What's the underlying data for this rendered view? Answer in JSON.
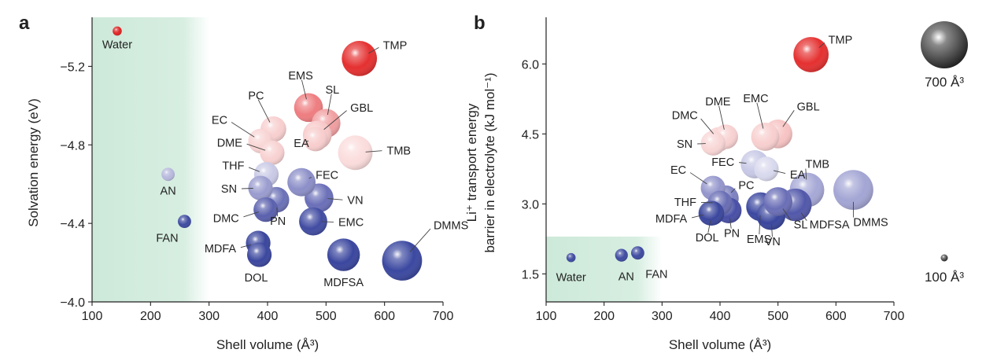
{
  "colors": {
    "shade": "#bfe3cf",
    "dark_blue": "#3a4a9e",
    "red": "#e8302c",
    "gray_ref": "#444444"
  },
  "chart_data": [
    {
      "type": "scatter",
      "panel_label": "a",
      "xlabel": "Shell volume (Å³)",
      "ylabel": "Solvation energy (eV)",
      "xlim": [
        100,
        700
      ],
      "ylim": [
        -4.0,
        -5.45
      ],
      "y_inverted": true,
      "xticks": [
        "100",
        "200",
        "300",
        "400",
        "500",
        "600",
        "700"
      ],
      "yticks": [
        "−4.0",
        "−4.4",
        "−4.8",
        "−5.2"
      ],
      "shaded_region_x": [
        100,
        300
      ],
      "points": [
        {
          "label": "Water",
          "x": 143,
          "y": -5.38,
          "size": 95,
          "color": "#e02424"
        },
        {
          "label": "AN",
          "x": 230,
          "y": -4.65,
          "size": 190,
          "color": "#b7b8dd"
        },
        {
          "label": "FAN",
          "x": 258,
          "y": -4.41,
          "size": 190,
          "color": "#3e4ba0"
        },
        {
          "label": "TMP",
          "x": 557,
          "y": -5.24,
          "size": 570,
          "color": "#e53030"
        },
        {
          "label": "EMS",
          "x": 470,
          "y": -4.99,
          "size": 470,
          "color": "#ee7d80"
        },
        {
          "label": "SL",
          "x": 500,
          "y": -4.91,
          "size": 470,
          "color": "#f19fa1"
        },
        {
          "label": "GBL",
          "x": 485,
          "y": -4.85,
          "size": 470,
          "color": "#f8c9c9"
        },
        {
          "label": "TMB",
          "x": 550,
          "y": -4.76,
          "size": 560,
          "color": "#fbdcdc"
        },
        {
          "label": "EA",
          "x": 482,
          "y": -4.83,
          "size": 400,
          "color": "#f8cdcd"
        },
        {
          "label": "PC",
          "x": 410,
          "y": -4.88,
          "size": 420,
          "color": "#f8cfcf"
        },
        {
          "label": "EC",
          "x": 388,
          "y": -4.82,
          "size": 400,
          "color": "#f9d4d4"
        },
        {
          "label": "DME",
          "x": 408,
          "y": -4.76,
          "size": 400,
          "color": "#f8d1d1"
        },
        {
          "label": "THF",
          "x": 398,
          "y": -4.65,
          "size": 400,
          "color": "#c9c9e6"
        },
        {
          "label": "SN",
          "x": 388,
          "y": -4.58,
          "size": 400,
          "color": "#9a9ccf"
        },
        {
          "label": "FEC",
          "x": 458,
          "y": -4.61,
          "size": 460,
          "color": "#8c8fc8"
        },
        {
          "label": "VN",
          "x": 488,
          "y": -4.53,
          "size": 470,
          "color": "#6a6fb8"
        },
        {
          "label": "PN",
          "x": 415,
          "y": -4.52,
          "size": 420,
          "color": "#6b71b7"
        },
        {
          "label": "DMC",
          "x": 397,
          "y": -4.47,
          "size": 400,
          "color": "#5a60ad"
        },
        {
          "label": "EMC",
          "x": 478,
          "y": -4.41,
          "size": 460,
          "color": "#414ca2"
        },
        {
          "label": "MDFA",
          "x": 384,
          "y": -4.3,
          "size": 400,
          "color": "#3a469d"
        },
        {
          "label": "DOL",
          "x": 386,
          "y": -4.24,
          "size": 400,
          "color": "#3b479e"
        },
        {
          "label": "MDFSA",
          "x": 530,
          "y": -4.24,
          "size": 530,
          "color": "#3a469e"
        },
        {
          "label": "DMMS",
          "x": 630,
          "y": -4.21,
          "size": 640,
          "color": "#3b48a0"
        }
      ]
    },
    {
      "type": "scatter",
      "panel_label": "b",
      "xlabel": "Shell volume (Å³)",
      "ylabel_line1": "Li⁺ transport energy",
      "ylabel_line2": "barrier in electrolyte (kJ mol⁻¹)",
      "xlim": [
        100,
        700
      ],
      "ylim": [
        0.9,
        7.0
      ],
      "xticks": [
        "100",
        "200",
        "300",
        "400",
        "500",
        "600",
        "700"
      ],
      "yticks": [
        "1.5",
        "3.0",
        "4.5",
        "6.0"
      ],
      "shaded_region_x": [
        100,
        300
      ],
      "shaded_region_y": [
        0.9,
        2.3
      ],
      "size_legend": [
        {
          "label": "700 Å³",
          "size": 700
        },
        {
          "label": "100 Å³",
          "size": 100
        }
      ],
      "points": [
        {
          "label": "Water",
          "x": 143,
          "y": 1.85,
          "size": 95,
          "color": "#3e4ba0"
        },
        {
          "label": "AN",
          "x": 230,
          "y": 1.9,
          "size": 180,
          "color": "#3e4ba0"
        },
        {
          "label": "FAN",
          "x": 258,
          "y": 1.95,
          "size": 190,
          "color": "#3e4ba0"
        },
        {
          "label": "TMP",
          "x": 557,
          "y": 6.2,
          "size": 570,
          "color": "#e53030"
        },
        {
          "label": "DMC",
          "x": 397,
          "y": 4.38,
          "size": 400,
          "color": "#f8d1d1"
        },
        {
          "label": "DME",
          "x": 410,
          "y": 4.44,
          "size": 400,
          "color": "#f8d1d1"
        },
        {
          "label": "SN",
          "x": 388,
          "y": 4.3,
          "size": 400,
          "color": "#f9d6d6"
        },
        {
          "label": "EMC",
          "x": 478,
          "y": 4.44,
          "size": 460,
          "color": "#f8cfcf"
        },
        {
          "label": "GBL",
          "x": 500,
          "y": 4.5,
          "size": 470,
          "color": "#f7c3c3"
        },
        {
          "label": "EA",
          "x": 480,
          "y": 3.75,
          "size": 400,
          "color": "#d9d9ee"
        },
        {
          "label": "FEC",
          "x": 460,
          "y": 3.85,
          "size": 460,
          "color": "#c8c9e6"
        },
        {
          "label": "EC",
          "x": 388,
          "y": 3.34,
          "size": 400,
          "color": "#9496cc"
        },
        {
          "label": "TMB",
          "x": 550,
          "y": 3.3,
          "size": 560,
          "color": "#a6a8d6"
        },
        {
          "label": "DMMS",
          "x": 630,
          "y": 3.3,
          "size": 640,
          "color": "#a3a5d4"
        },
        {
          "label": "PC",
          "x": 410,
          "y": 3.12,
          "size": 420,
          "color": "#7d81c0"
        },
        {
          "label": "THF",
          "x": 400,
          "y": 3.02,
          "size": 400,
          "color": "#686db4"
        },
        {
          "label": "MDFA",
          "x": 384,
          "y": 2.8,
          "size": 400,
          "color": "#3e4aa0"
        },
        {
          "label": "PN",
          "x": 415,
          "y": 2.86,
          "size": 420,
          "color": "#484fa6"
        },
        {
          "label": "EMS",
          "x": 470,
          "y": 2.94,
          "size": 470,
          "color": "#3c48a0"
        },
        {
          "label": "VN",
          "x": 488,
          "y": 2.75,
          "size": 470,
          "color": "#3a469d"
        },
        {
          "label": "SL",
          "x": 500,
          "y": 3.05,
          "size": 470,
          "color": "#6a6eb6"
        },
        {
          "label": "MDFSA",
          "x": 530,
          "y": 2.98,
          "size": 530,
          "color": "#5258aa"
        },
        {
          "label": "DOL",
          "x": 386,
          "y": 2.8,
          "size": 400,
          "color": "#3a469d"
        }
      ]
    }
  ]
}
